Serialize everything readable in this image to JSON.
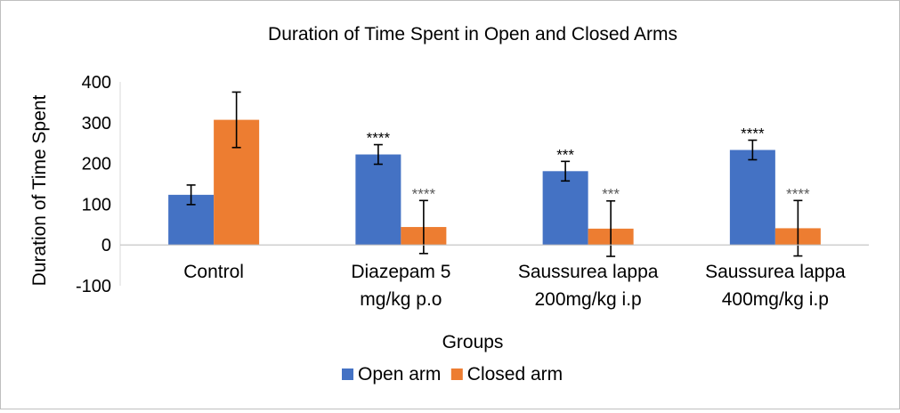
{
  "chart_data": {
    "type": "bar",
    "title": "Duration of Time Spent in Open and Closed Arms",
    "xlabel": "Groups",
    "ylabel": "Duration of Time Spent",
    "ylim": [
      -100,
      400
    ],
    "yticks": [
      -100,
      0,
      100,
      200,
      300,
      400
    ],
    "grid": false,
    "legend_position": "bottom",
    "categories": [
      [
        "Control"
      ],
      [
        "Diazepam 5",
        "mg/kg p.o"
      ],
      [
        "Saussurea lappa",
        "200mg/kg i.p"
      ],
      [
        "Saussurea lappa",
        "400mg/kg i.p"
      ]
    ],
    "series": [
      {
        "name": "Open arm",
        "color": "#4472c4",
        "values": [
          123,
          222,
          181,
          233
        ],
        "error": [
          24,
          24,
          24,
          24
        ],
        "annotations": [
          "",
          "****",
          "***",
          "****"
        ],
        "annotation_color": "#000000"
      },
      {
        "name": "Closed arm",
        "color": "#ed7d31",
        "values": [
          307,
          44,
          40,
          41
        ],
        "error": [
          68,
          65,
          68,
          68
        ],
        "annotations": [
          "",
          "****",
          "***",
          "****"
        ],
        "annotation_color": "#595959"
      }
    ]
  }
}
